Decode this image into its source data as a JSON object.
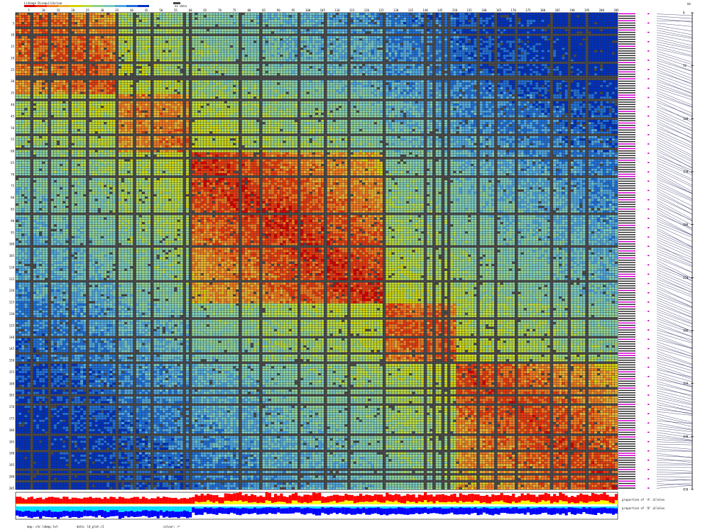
{
  "chart_data": {
    "type": "heatmap",
    "title": "",
    "grid_size": 205,
    "n_snps": 205,
    "tick_step": 5,
    "colors": {
      "missing": "#4a4a4a",
      "grid_line": "#2a2a2a",
      "scale": [
        "#d40000",
        "#e83a10",
        "#f07a20",
        "#e8b030",
        "#d4d400",
        "#b8d840",
        "#90d090",
        "#78c8c0",
        "#50a8e0",
        "#2070d8",
        "#0030c0"
      ]
    },
    "blocks": [
      {
        "start": 0,
        "end": 35,
        "strength": 0.85
      },
      {
        "start": 35,
        "end": 60,
        "strength": 0.8
      },
      {
        "start": 60,
        "end": 125,
        "strength": 0.92
      },
      {
        "start": 125,
        "end": 150,
        "strength": 0.85
      },
      {
        "start": 150,
        "end": 205,
        "strength": 0.88
      }
    ],
    "missing_rows": [
      6,
      9,
      21,
      27,
      28,
      37,
      45,
      52,
      58,
      62,
      70,
      86,
      100,
      115,
      131,
      139,
      146,
      150,
      161,
      164,
      168,
      181,
      188,
      196,
      198,
      201
    ],
    "missing_cols": [
      5,
      11,
      18,
      24,
      34,
      40,
      46,
      57,
      59,
      76,
      83,
      96,
      105,
      113,
      125,
      139,
      142,
      145,
      147,
      157,
      163,
      170,
      182,
      188,
      194
    ],
    "allele_bars": {
      "label_top": "proportion of 'A' alleles",
      "label_bottom": "proportion of 'B' alleles",
      "colors": [
        "#ff0000",
        "#ffff00",
        "#ffffff",
        "#00e0ff",
        "#0000ff"
      ]
    },
    "legend": {
      "title": "Linkage Disequilibrium",
      "scale_label": "r²",
      "missing_label": "no data"
    },
    "right_axis": {
      "label": "kb",
      "ticks": [
        0,
        50,
        100,
        150,
        200,
        250,
        300,
        350,
        400,
        450
      ]
    }
  },
  "footer": {
    "map_label": "map: chr.ldmap.txt",
    "data_label": "data: ld_plot.r2",
    "colour_label": "colour: r²"
  }
}
